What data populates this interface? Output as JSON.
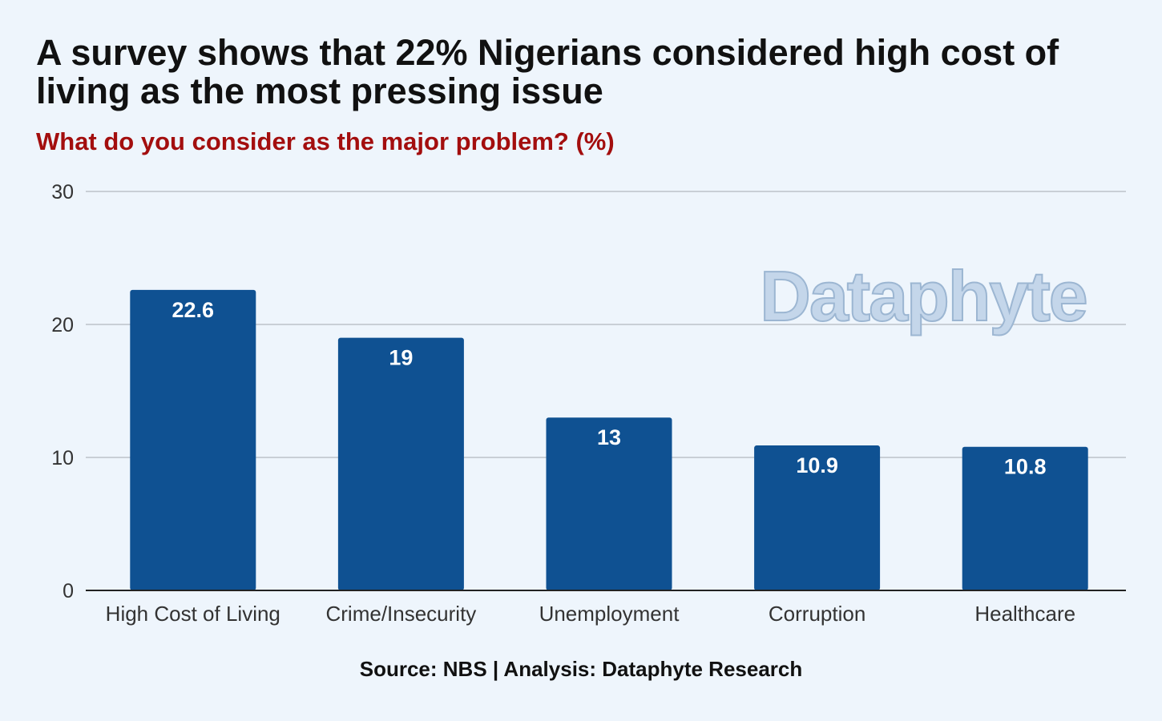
{
  "header": {
    "title": "A survey shows that 22% Nigerians considered high cost of living as the most pressing issue",
    "subtitle": "What do you consider as the major problem? (%)"
  },
  "footer": {
    "source": "Source: NBS | Analysis: Dataphyte Research"
  },
  "watermark": {
    "text": "Dataphyte"
  },
  "colors": {
    "bar": "#0f5192",
    "subtitle": "#a30e0e",
    "gridline": "#c9cfd6",
    "axis": "#222222"
  },
  "chart_data": {
    "type": "bar",
    "categories": [
      "High Cost of Living",
      "Crime/Insecurity",
      "Unemployment",
      "Corruption",
      "Healthcare"
    ],
    "values": [
      22.6,
      19,
      13,
      10.9,
      10.8
    ],
    "data_labels": [
      "22.6",
      "19",
      "13",
      "10.9",
      "10.8"
    ],
    "ylim": [
      0,
      30
    ],
    "yticks": [
      0,
      10,
      20,
      30
    ],
    "grid": true,
    "legend": "none"
  }
}
